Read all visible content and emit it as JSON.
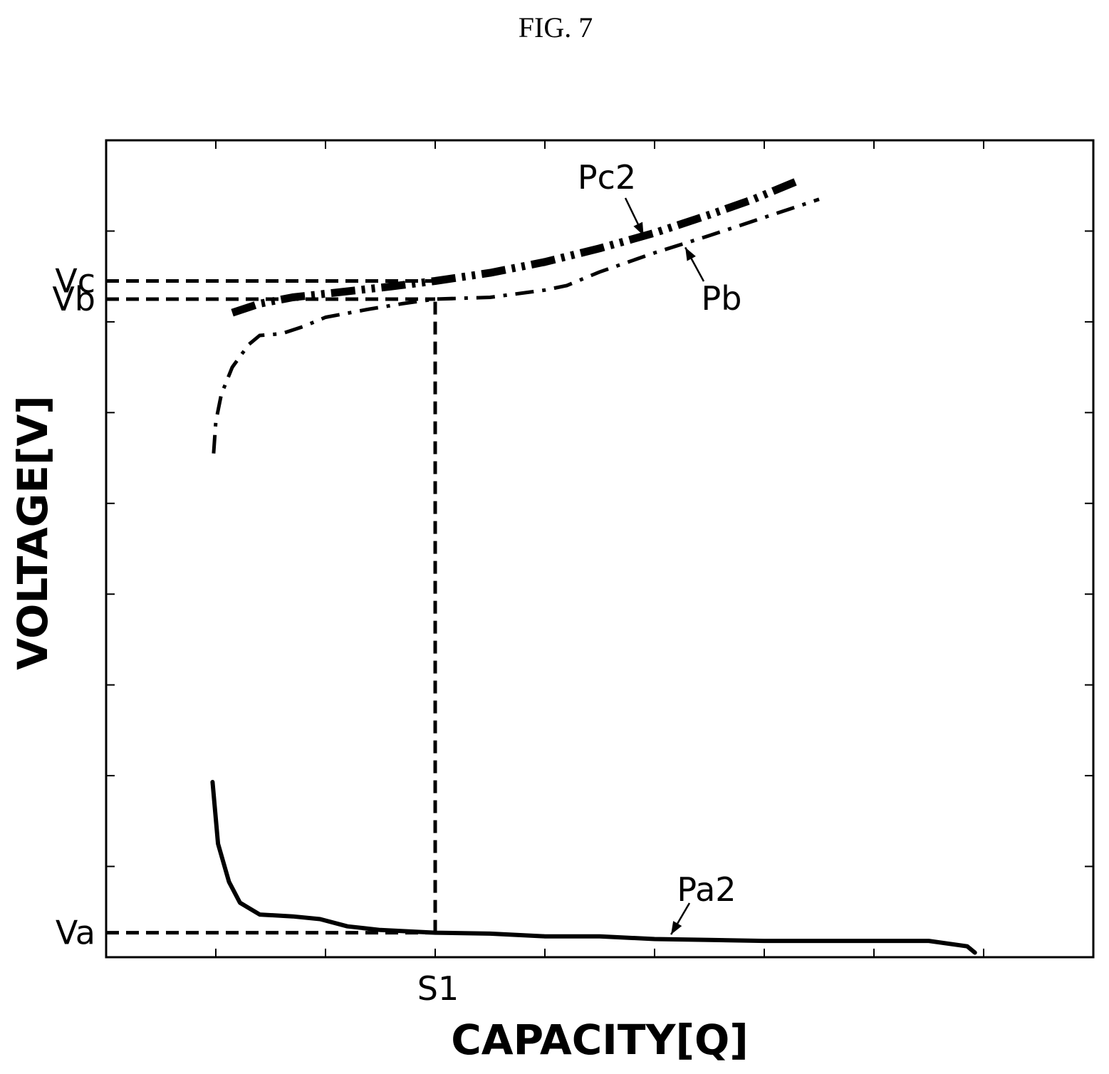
{
  "figure_title": "FIG. 7",
  "colors": {
    "ink": "#000000",
    "background": "#ffffff"
  },
  "chart_data": {
    "type": "line",
    "xlabel": "CAPACITY[Q]",
    "ylabel": "VOLTAGE[V]",
    "xlim": [
      0,
      9
    ],
    "ylim": [
      0,
      9
    ],
    "grid": false,
    "legend": "none",
    "x_tick_labels": [
      {
        "label": "S1",
        "x": 3
      }
    ],
    "y_tick_labels": [
      {
        "label": "Vc",
        "y": 7.45
      },
      {
        "label": "Vb",
        "y": 7.25
      },
      {
        "label": "Va",
        "y": 0.27
      }
    ],
    "reference_lines": [
      {
        "name": "Vc",
        "y": 7.45,
        "x_from": 0,
        "x_to": 3.0
      },
      {
        "name": "Vb",
        "y": 7.25,
        "x_from": 0,
        "x_to": 3.0
      },
      {
        "name": "Va",
        "y": 0.27,
        "x_from": 0,
        "x_to": 3.0
      },
      {
        "name": "S1",
        "x": 3.0,
        "y_from": 0.27,
        "y_to": 7.25
      }
    ],
    "series": [
      {
        "name": "Pc2",
        "style": "dash-dot-dot-bold",
        "x": [
          1.15,
          1.4,
          1.7,
          2.0,
          2.3,
          2.6,
          3.0,
          3.5,
          4.0,
          4.5,
          5.0,
          5.5,
          5.9,
          6.3
        ],
        "y": [
          7.1,
          7.2,
          7.27,
          7.31,
          7.35,
          7.39,
          7.45,
          7.54,
          7.66,
          7.81,
          7.98,
          8.18,
          8.35,
          8.55
        ]
      },
      {
        "name": "Pb",
        "style": "dash-dot",
        "x": [
          0.98,
          1.0,
          1.05,
          1.15,
          1.3,
          1.4,
          1.6,
          1.8,
          2.0,
          2.4,
          2.7,
          3.0,
          3.5,
          4.0,
          4.2,
          4.5,
          5.0,
          5.5,
          6.0,
          6.5
        ],
        "y": [
          5.55,
          5.9,
          6.2,
          6.5,
          6.75,
          6.85,
          6.87,
          6.95,
          7.05,
          7.14,
          7.2,
          7.25,
          7.27,
          7.35,
          7.4,
          7.55,
          7.76,
          7.95,
          8.15,
          8.35
        ]
      },
      {
        "name": "Pa2",
        "style": "solid",
        "x": [
          0.97,
          1.02,
          1.12,
          1.22,
          1.4,
          1.7,
          1.95,
          2.2,
          2.5,
          3.0,
          3.5,
          4.0,
          4.5,
          5.0,
          5.5,
          6.0,
          6.5,
          7.0,
          7.5,
          7.85,
          7.92
        ],
        "y": [
          1.93,
          1.25,
          0.83,
          0.6,
          0.47,
          0.45,
          0.42,
          0.34,
          0.3,
          0.27,
          0.26,
          0.23,
          0.23,
          0.2,
          0.19,
          0.18,
          0.18,
          0.18,
          0.18,
          0.12,
          0.05
        ]
      }
    ],
    "annotations": [
      {
        "text": "Pc2",
        "target_series": "Pc2",
        "at_x": 4.9,
        "at_y": 7.95
      },
      {
        "text": "Pb",
        "target_series": "Pb",
        "at_x": 5.28,
        "at_y": 7.82
      },
      {
        "text": "Pa2",
        "target_series": "Pa2",
        "at_x": 5.15,
        "at_y": 0.25
      }
    ]
  }
}
